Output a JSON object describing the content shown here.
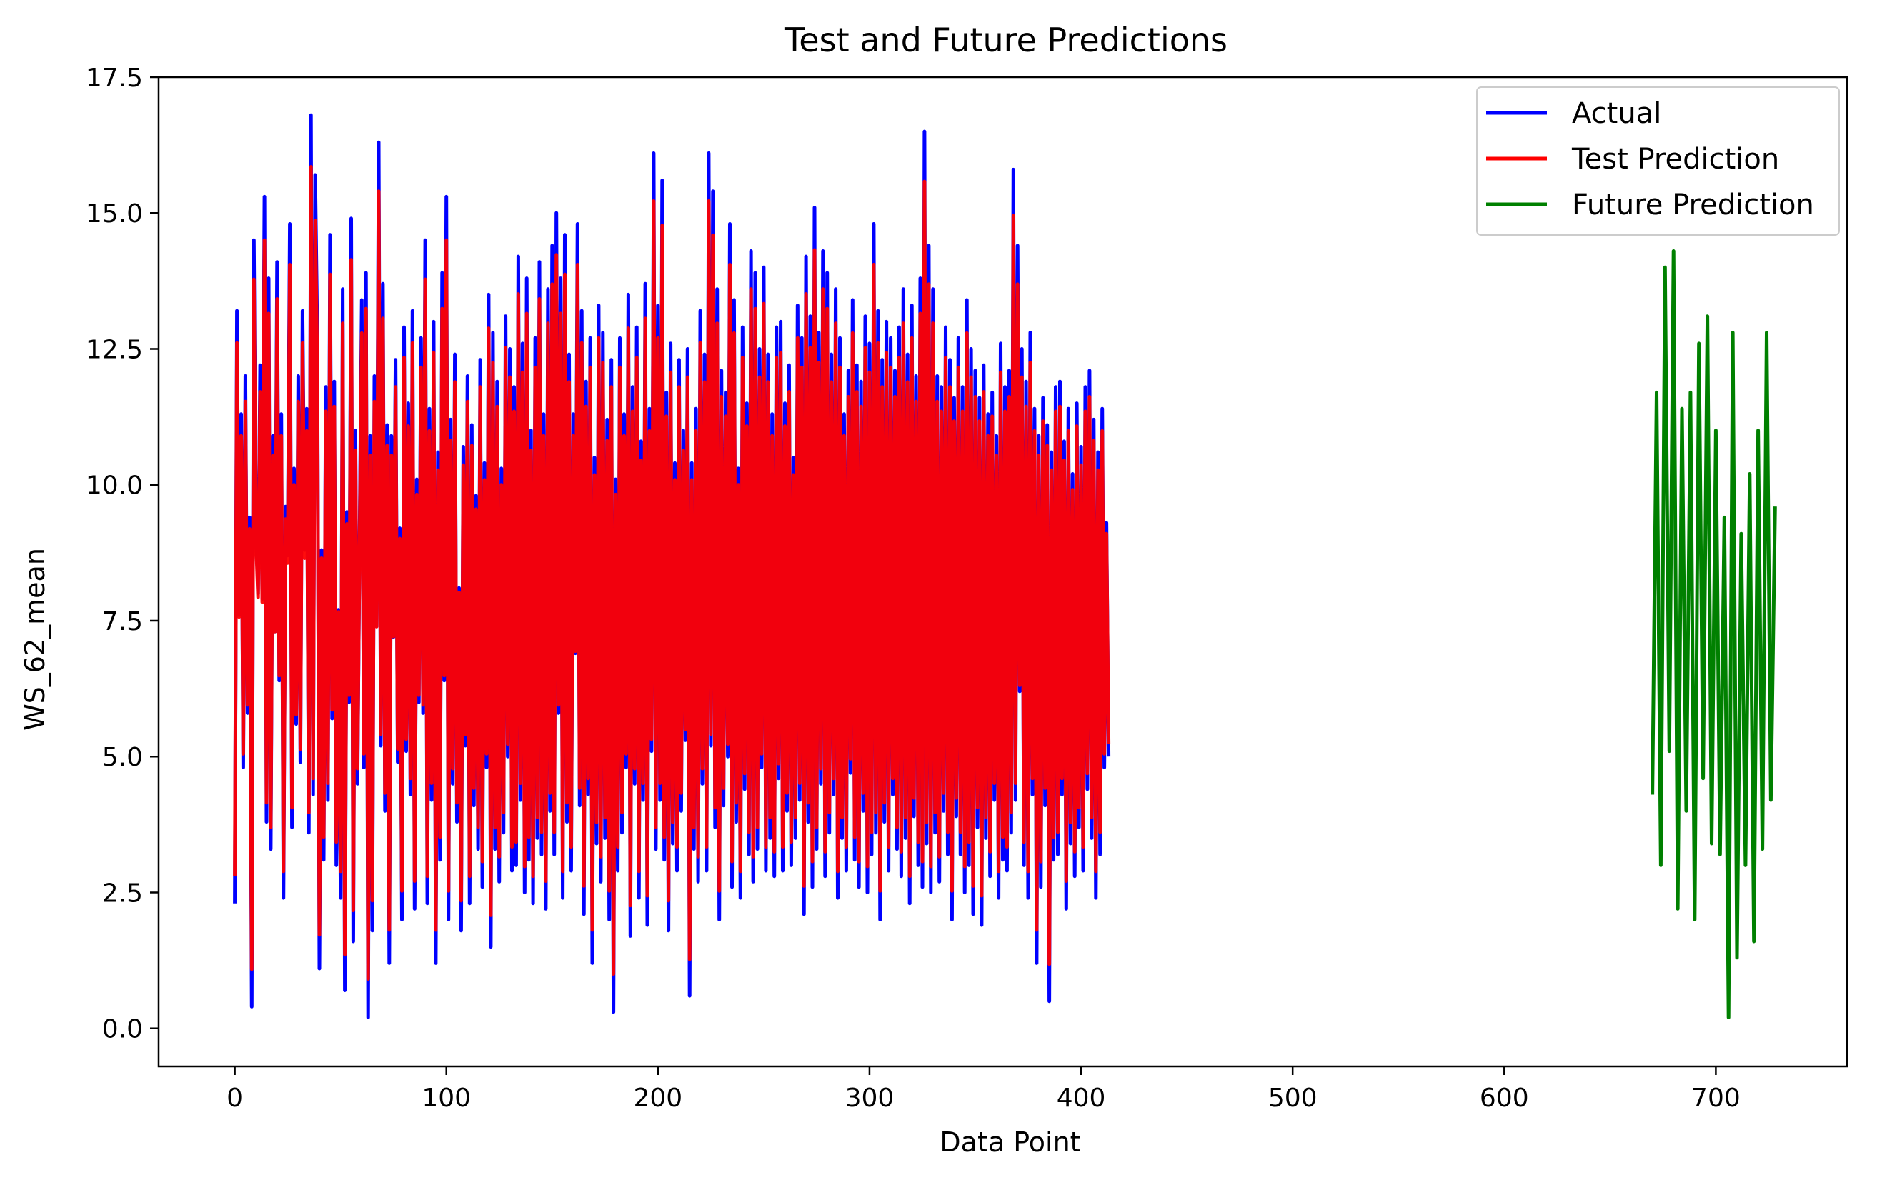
{
  "chart_data": {
    "type": "line",
    "title": "Test and Future Predictions",
    "xlabel": "Data Point",
    "ylabel": "WS_62_mean",
    "xlim": [
      -36,
      762
    ],
    "ylim": [
      -0.7,
      17.5
    ],
    "xticks": [
      0,
      100,
      200,
      300,
      400,
      500,
      600,
      700
    ],
    "xtick_labels": [
      "0",
      "100",
      "200",
      "300",
      "400",
      "500",
      "600",
      "700"
    ],
    "yticks": [
      0.0,
      2.5,
      5.0,
      7.5,
      10.0,
      12.5,
      15.0,
      17.5
    ],
    "ytick_labels": [
      "0.0",
      "2.5",
      "5.0",
      "7.5",
      "10.0",
      "12.5",
      "15.0",
      "17.5"
    ],
    "grid": false,
    "legend_position": "top-right",
    "series": [
      {
        "name": "Actual",
        "color": "#0000ff",
        "x_start": 0,
        "x_step": 1,
        "values": [
          2.3,
          13.2,
          7.6,
          11.3,
          4.8,
          12.0,
          5.8,
          9.4,
          0.4,
          14.5,
          9.2,
          8.0,
          12.2,
          7.9,
          15.3,
          3.8,
          13.8,
          3.3,
          10.9,
          7.3,
          14.1,
          6.4,
          11.3,
          2.4,
          9.6,
          8.7,
          14.8,
          3.7,
          10.3,
          5.6,
          12.0,
          4.9,
          13.2,
          8.8,
          11.4,
          3.6,
          16.8,
          4.3,
          15.7,
          12.7,
          1.1,
          8.8,
          3.1,
          11.8,
          4.2,
          14.6,
          5.7,
          11.9,
          3.0,
          7.7,
          2.4,
          13.6,
          0.7,
          9.5,
          6.0,
          14.9,
          1.6,
          11.0,
          4.5,
          9.1,
          13.4,
          4.8,
          13.9,
          0.2,
          10.9,
          1.8,
          12.0,
          7.4,
          16.3,
          5.2,
          13.7,
          4.0,
          11.1,
          1.2,
          10.9,
          7.2,
          12.3,
          4.9,
          9.2,
          2.0,
          12.9,
          5.1,
          11.5,
          4.3,
          13.2,
          2.2,
          10.1,
          6.0,
          12.7,
          5.8,
          14.5,
          2.3,
          11.4,
          4.2,
          13.0,
          1.2,
          10.6,
          3.1,
          13.9,
          6.4,
          15.3,
          2.0,
          11.2,
          4.5,
          12.4,
          3.8,
          8.1,
          1.8,
          10.7,
          5.2,
          12.0,
          2.3,
          11.1,
          4.1,
          9.8,
          3.3,
          12.3,
          2.6,
          10.4,
          4.8,
          13.5,
          1.5,
          12.8,
          3.3,
          11.9,
          2.7,
          10.3,
          3.6,
          13.1,
          5.0,
          12.5,
          2.9,
          11.8,
          3.0,
          14.2,
          4.2,
          12.6,
          2.5,
          13.8,
          3.1,
          11.0,
          2.3,
          12.7,
          3.5,
          14.1,
          3.2,
          11.3,
          2.2,
          13.6,
          4.0,
          14.4,
          3.2,
          15.0,
          5.8,
          13.8,
          2.4,
          14.6,
          3.8,
          12.4,
          2.9,
          11.3,
          6.9,
          14.8,
          4.1,
          13.2,
          2.1,
          11.9,
          4.3,
          12.7,
          1.2,
          10.5,
          3.4,
          13.3,
          2.7,
          12.8,
          3.5,
          11.2,
          2.0,
          12.3,
          0.3,
          10.1,
          2.9,
          12.7,
          3.6,
          11.3,
          4.8,
          13.5,
          1.7,
          11.8,
          4.5,
          12.9,
          2.4,
          10.8,
          4.2,
          13.7,
          1.9,
          11.4,
          5.1,
          16.1,
          3.3,
          13.3,
          4.2,
          15.6,
          3.1,
          11.7,
          1.8,
          12.6,
          3.4,
          10.4,
          2.9,
          12.3,
          4.0,
          11.0,
          5.3,
          12.5,
          0.6,
          10.4,
          3.3,
          11.4,
          2.7,
          13.2,
          4.5,
          12.4,
          2.9,
          16.1,
          5.2,
          15.4,
          3.7,
          13.6,
          2.0,
          12.1,
          4.1,
          11.7,
          5.0,
          14.8,
          2.6,
          13.4,
          3.8,
          10.3,
          2.4,
          12.9,
          4.4,
          11.5,
          3.2,
          14.3,
          2.7,
          13.9,
          3.3,
          12.5,
          4.8,
          14.0,
          2.9,
          12.4,
          3.5,
          11.3,
          2.8,
          12.9,
          4.6,
          13.0,
          2.9,
          11.5,
          4.0,
          12.2,
          3.0,
          10.5,
          3.5,
          13.3,
          4.2,
          12.7,
          2.1,
          14.2,
          3.8,
          13.1,
          2.6,
          15.1,
          3.3,
          12.8,
          4.5,
          14.3,
          2.8,
          13.9,
          3.6,
          12.4,
          4.3,
          13.6,
          2.4,
          12.7,
          3.5,
          11.3,
          2.9,
          12.1,
          4.7,
          13.4,
          3.1,
          12.2,
          2.6,
          11.9,
          4.0,
          13.1,
          2.5,
          12.6,
          3.2,
          14.8,
          3.6,
          13.2,
          2.0,
          12.3,
          3.8,
          13.0,
          2.9,
          12.7,
          4.3,
          12.1,
          3.3,
          12.9,
          2.8,
          13.6,
          3.5,
          12.4,
          2.3,
          13.3,
          3.9,
          12.0,
          3.0,
          13.8,
          2.6,
          16.5,
          3.4,
          14.4,
          2.5,
          13.6,
          3.6,
          12.0,
          2.7,
          11.8,
          4.0,
          12.9,
          3.2,
          12.3,
          2.0,
          11.6,
          3.9,
          12.7,
          3.2,
          11.8,
          2.5,
          13.4,
          3.0,
          12.5,
          2.1,
          12.1,
          3.7,
          11.6,
          1.9,
          12.2,
          3.5,
          11.3,
          2.8,
          11.7,
          4.2,
          10.9,
          2.4,
          12.6,
          3.1,
          11.8,
          2.9,
          12.1,
          3.6,
          15.8,
          4.2,
          14.4,
          6.2,
          12.5,
          3.0,
          11.9,
          2.4,
          12.8,
          4.3,
          11.4,
          1.2,
          10.9,
          2.6,
          11.6,
          4.1,
          11.1,
          0.5,
          10.6,
          3.1,
          11.8,
          3.2,
          11.9,
          4.3,
          10.8,
          2.2,
          11.4,
          3.4,
          10.2,
          2.8,
          11.5,
          3.7,
          10.7,
          2.9,
          11.8,
          4.4,
          12.1,
          3.5,
          11.2,
          2.4,
          10.6,
          3.2,
          11.4,
          4.8,
          9.3,
          5.0
        ],
        "values_note": ""
      },
      {
        "name": "Test Prediction",
        "color": "#ff0000",
        "values_ref": "same trajectory as Actual, slightly smoothed"
      },
      {
        "name": "Future Prediction",
        "color": "#008000",
        "x": [
          670,
          672,
          674,
          676,
          678,
          680,
          682,
          684,
          686,
          688,
          690,
          692,
          694,
          696,
          698,
          700,
          702,
          704,
          706,
          708,
          710,
          712,
          714,
          716,
          718,
          720,
          722,
          724,
          726,
          728
        ],
        "values": [
          4.3,
          11.7,
          3.0,
          14.0,
          5.1,
          14.3,
          2.2,
          11.4,
          4.0,
          11.7,
          2.0,
          12.6,
          4.6,
          13.1,
          3.4,
          11.0,
          3.2,
          9.4,
          0.2,
          12.8,
          1.3,
          9.1,
          3.0,
          10.2,
          1.6,
          11.0,
          3.3,
          12.8,
          4.2,
          9.6
        ]
      }
    ]
  }
}
